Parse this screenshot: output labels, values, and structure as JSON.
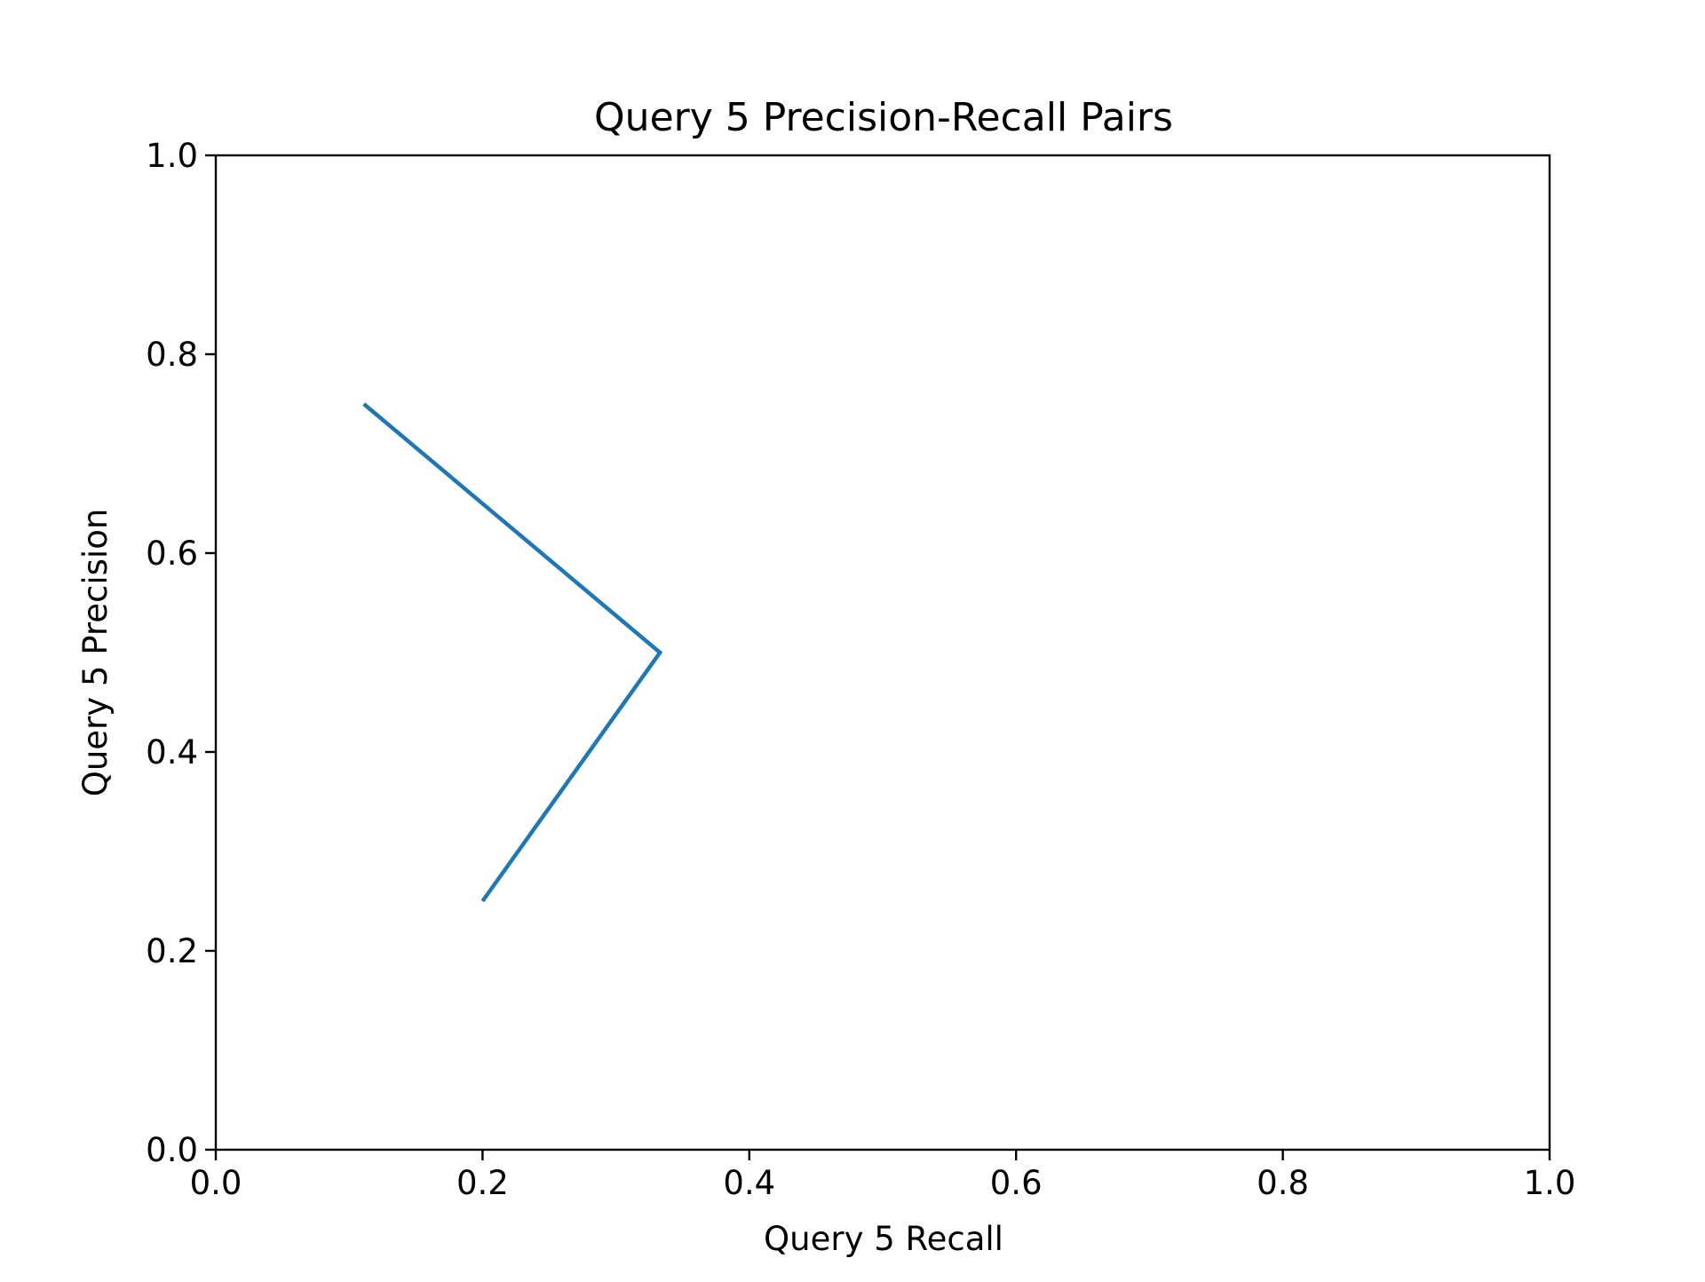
{
  "chart_data": {
    "type": "line",
    "title": "Query 5 Precision-Recall Pairs",
    "xlabel": "Query 5 Recall",
    "ylabel": "Query 5 Precision",
    "xlim": [
      0.0,
      1.0
    ],
    "ylim": [
      0.0,
      1.0
    ],
    "xticks": [
      "0.0",
      "0.2",
      "0.4",
      "0.6",
      "0.8",
      "1.0"
    ],
    "yticks": [
      "0.0",
      "0.2",
      "0.4",
      "0.6",
      "0.8",
      "1.0"
    ],
    "grid": false,
    "series": [
      {
        "color": "#1f77b4",
        "x": [
          0.111,
          0.333,
          0.2
        ],
        "y": [
          0.75,
          0.5,
          0.25
        ]
      }
    ]
  }
}
